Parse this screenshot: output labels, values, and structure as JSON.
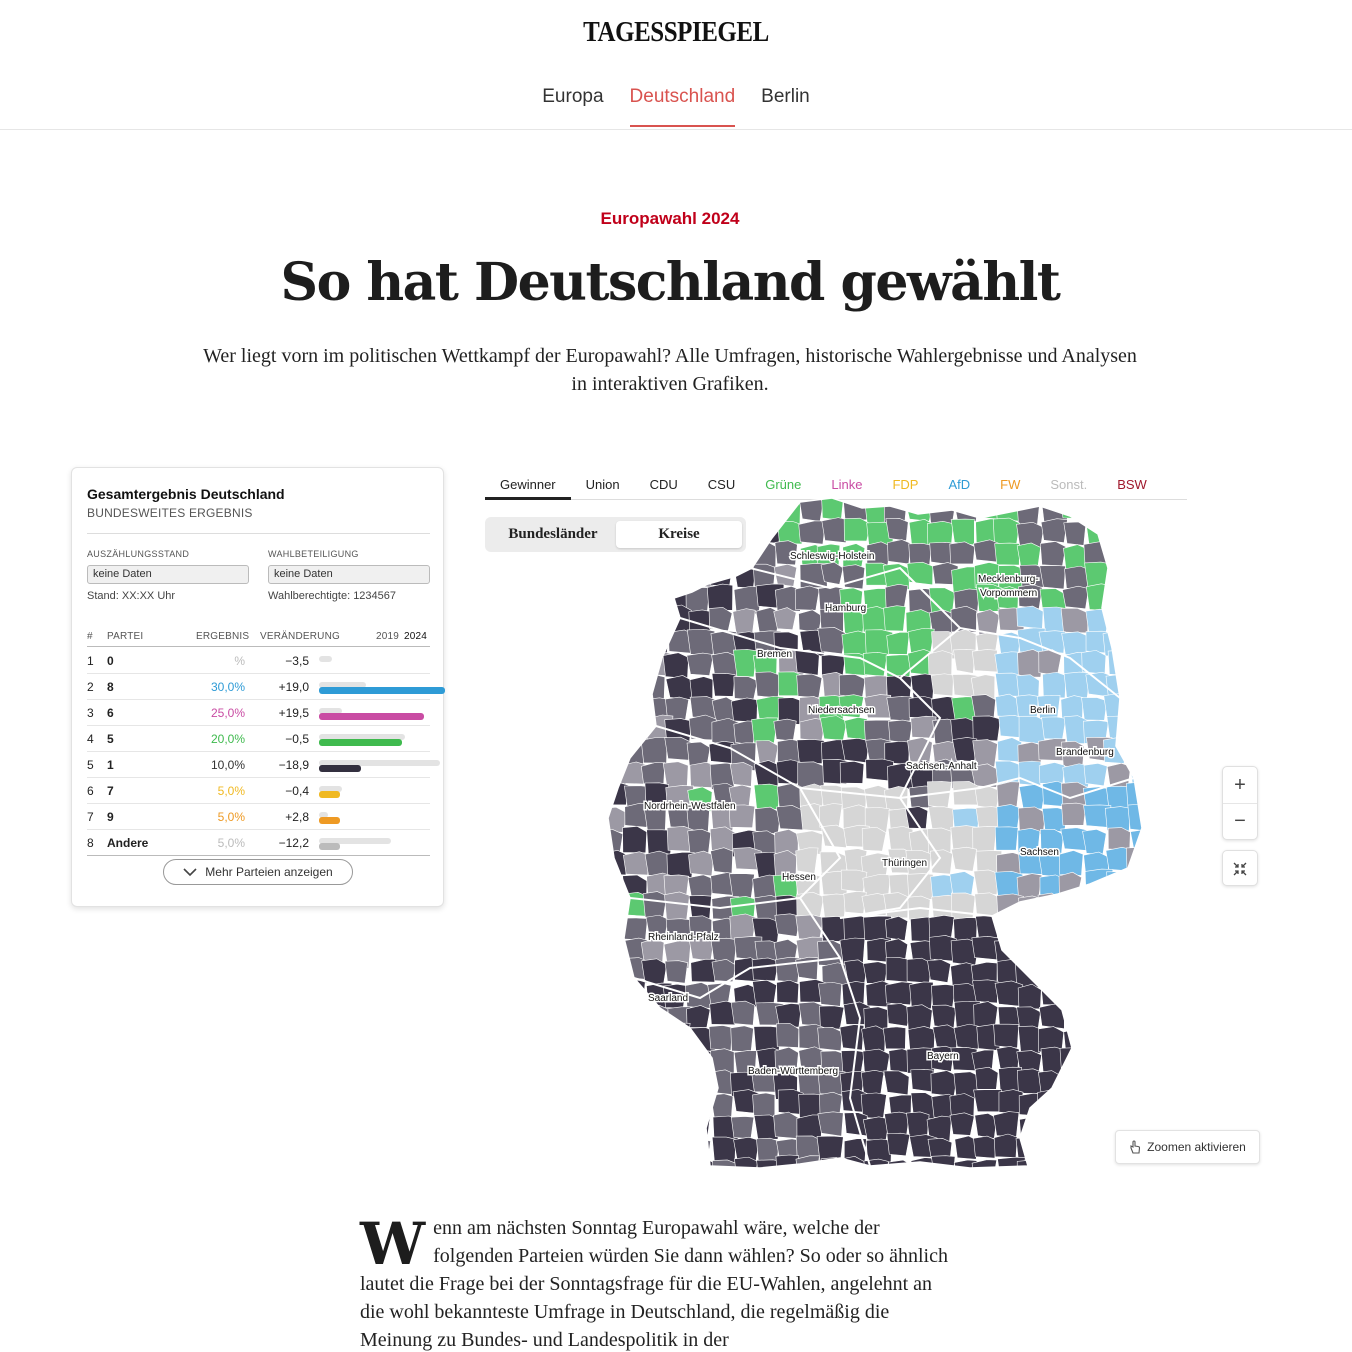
{
  "brand": {
    "logo": "TAGESSPIEGEL"
  },
  "nav": {
    "items": [
      "Europa",
      "Deutschland",
      "Berlin"
    ],
    "active": "Deutschland"
  },
  "hero": {
    "kicker": "Europawahl 2024",
    "headline": "So hat Deutschland gewählt",
    "lede": "Wer liegt vorn im politischen Wettkampf der Europawahl? Alle Umfragen, historische Wahlergebnisse und Analysen in interaktiven Grafiken."
  },
  "result_card": {
    "title": "Gesamtergebnis Deutschland",
    "subtitle": "BUNDESWEITES ERGEBNIS",
    "count_label": "AUSZÄHLUNGSSTAND",
    "count_value": "keine Daten",
    "count_note": "Stand: XX:XX Uhr",
    "turnout_label": "WAHLBETEILIGUNG",
    "turnout_value": "keine Daten",
    "turnout_note": "Wahlberechtigte: 1234567",
    "columns": {
      "rank": "#",
      "party": "PARTEI",
      "result": "ERGEBNIS",
      "change": "VERÄNDERUNG",
      "y2019": "2019",
      "y2024": "2024"
    },
    "rows": [
      {
        "rank": "1",
        "party": "0",
        "result": "%",
        "change": "−3,5",
        "share19": 0.1,
        "share24": 0.0,
        "color": "#bbbbbb"
      },
      {
        "rank": "2",
        "party": "8",
        "result": "30,0%",
        "change": "+19,0",
        "share19": 0.37,
        "share24": 1.0,
        "color": "#2e9bd6"
      },
      {
        "rank": "3",
        "party": "6",
        "result": "25,0%",
        "change": "+19,5",
        "share19": 0.18,
        "share24": 0.83,
        "color": "#c94ca3"
      },
      {
        "rank": "4",
        "party": "5",
        "result": "20,0%",
        "change": "−0,5",
        "share19": 0.68,
        "share24": 0.66,
        "color": "#3fba4e"
      },
      {
        "rank": "5",
        "party": "1",
        "result": "10,0%",
        "change": "−18,9",
        "share19": 0.96,
        "share24": 0.33,
        "color": "#33303f"
      },
      {
        "rank": "6",
        "party": "7",
        "result": "5,0%",
        "change": "−0,4",
        "share19": 0.18,
        "share24": 0.17,
        "color": "#f0b922"
      },
      {
        "rank": "7",
        "party": "9",
        "result": "5,0%",
        "change": "+2,8",
        "share19": 0.07,
        "share24": 0.17,
        "color": "#ee9a24"
      },
      {
        "rank": "8",
        "party": "Andere",
        "result": "5,0%",
        "change": "−12,2",
        "share19": 0.57,
        "share24": 0.17,
        "color": "#bbbbbb"
      }
    ],
    "result_colors": [
      "#bbbbbb",
      "#2e9bd6",
      "#c94ca3",
      "#3fba4e",
      "#333333",
      "#f0b922",
      "#ee9a24",
      "#bbbbbb"
    ],
    "more_button": "Mehr Parteien anzeigen"
  },
  "map": {
    "tabs": [
      {
        "label": "Gewinner",
        "color": "#222222"
      },
      {
        "label": "Union",
        "color": "#222222"
      },
      {
        "label": "CDU",
        "color": "#222222"
      },
      {
        "label": "CSU",
        "color": "#222222"
      },
      {
        "label": "Grüne",
        "color": "#3fba4e"
      },
      {
        "label": "Linke",
        "color": "#c94ca3"
      },
      {
        "label": "FDP",
        "color": "#f0b922"
      },
      {
        "label": "AfD",
        "color": "#2e9bd6"
      },
      {
        "label": "FW",
        "color": "#ee9a24"
      },
      {
        "label": "Sonst.",
        "color": "#bbbbbb"
      },
      {
        "label": "BSW",
        "color": "#a0182c"
      }
    ],
    "active_tab": "Gewinner",
    "toggle": {
      "left": "Bundesländer",
      "right": "Kreise",
      "selected": "Kreise"
    },
    "states": [
      "Schleswig-Holstein",
      "Hamburg",
      "Mecklenburg-",
      "Vorpommern",
      "Bremen",
      "Niedersachsen",
      "Berlin",
      "Brandenburg",
      "Sachsen-Anhalt",
      "Nordrhein-Westfalen",
      "Sachsen",
      "Hessen",
      "Thüringen",
      "Rheinland-Pfalz",
      "Saarland",
      "Bayern",
      "Baden-Württemberg"
    ],
    "zoom_in": "+",
    "zoom_out": "−",
    "zoom_activate": "Zoomen aktivieren",
    "colors": {
      "union_dark": "#3b3648",
      "mid": "#6d6a78",
      "light": "#9c99a4",
      "gruene": "#5cc971",
      "afd": "#6fb8e6",
      "afd_light": "#9fd0ef",
      "sonst": "#d6d6d6"
    }
  },
  "article": {
    "dropcap": "W",
    "text": "enn am nächsten Sonntag Europawahl wäre, welche der folgenden Parteien würden Sie dann wählen? So oder so ähnlich lautet die Frage bei der Sonntagsfrage für die EU-Wahlen, angelehnt an die wohl bekannteste Umfrage in Deutschland, die regelmäßig die Meinung zu Bundes- und Landespolitik in der"
  }
}
